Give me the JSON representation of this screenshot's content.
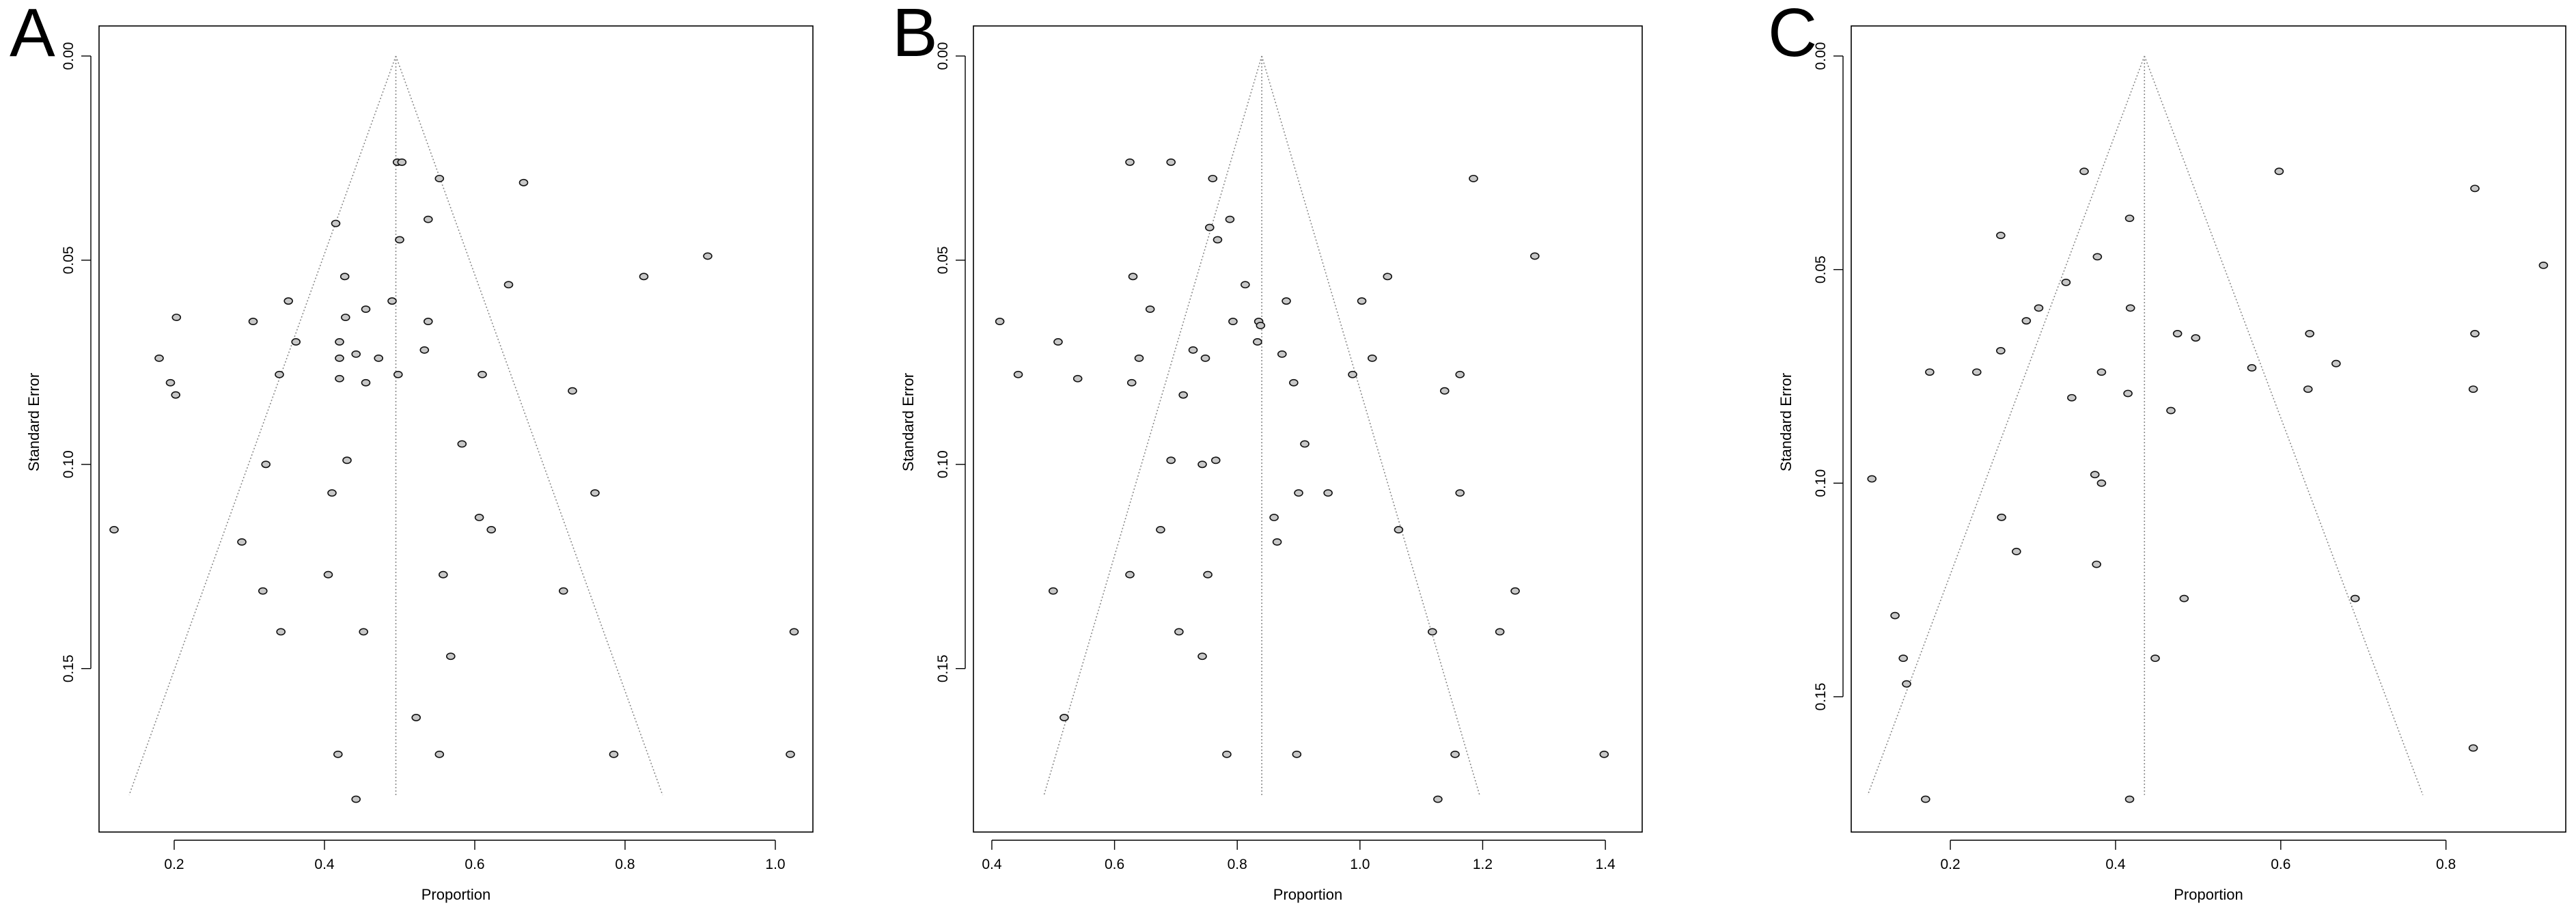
{
  "chart_data": [
    {
      "type": "scatter",
      "panel": "A",
      "xlabel": "Proportion",
      "ylabel": "Standard Error",
      "xlim": [
        0.1,
        1.05
      ],
      "ylim": [
        0.0,
        0.182
      ],
      "y_reversed": true,
      "x_ticks": [
        "0.2",
        "0.4",
        "0.6",
        "0.8",
        "1.0"
      ],
      "x_tick_values": [
        0.2,
        0.4,
        0.6,
        0.8,
        1.0
      ],
      "y_ticks": [
        "0.00",
        "0.05",
        "0.10",
        "0.15"
      ],
      "y_tick_values": [
        0.0,
        0.05,
        0.1,
        0.15
      ],
      "pooled_estimate": 0.495,
      "funnel_base_se": 0.181,
      "funnel_base_x": [
        0.14,
        0.85
      ],
      "points": [
        [
          0.497,
          0.026
        ],
        [
          0.503,
          0.026
        ],
        [
          0.553,
          0.03
        ],
        [
          0.665,
          0.031
        ],
        [
          0.415,
          0.041
        ],
        [
          0.538,
          0.04
        ],
        [
          0.5,
          0.045
        ],
        [
          0.91,
          0.049
        ],
        [
          0.427,
          0.054
        ],
        [
          0.825,
          0.054
        ],
        [
          0.645,
          0.056
        ],
        [
          0.352,
          0.06
        ],
        [
          0.49,
          0.06
        ],
        [
          0.203,
          0.064
        ],
        [
          0.305,
          0.065
        ],
        [
          0.428,
          0.064
        ],
        [
          0.455,
          0.062
        ],
        [
          0.538,
          0.065
        ],
        [
          0.362,
          0.07
        ],
        [
          0.42,
          0.07
        ],
        [
          0.18,
          0.074
        ],
        [
          0.42,
          0.074
        ],
        [
          0.442,
          0.073
        ],
        [
          0.472,
          0.074
        ],
        [
          0.533,
          0.072
        ],
        [
          0.34,
          0.078
        ],
        [
          0.42,
          0.079
        ],
        [
          0.455,
          0.08
        ],
        [
          0.498,
          0.078
        ],
        [
          0.61,
          0.078
        ],
        [
          0.195,
          0.08
        ],
        [
          0.202,
          0.083
        ],
        [
          0.73,
          0.082
        ],
        [
          0.583,
          0.095
        ],
        [
          0.322,
          0.1
        ],
        [
          0.43,
          0.099
        ],
        [
          0.41,
          0.107
        ],
        [
          0.76,
          0.107
        ],
        [
          0.606,
          0.113
        ],
        [
          0.622,
          0.116
        ],
        [
          0.12,
          0.116
        ],
        [
          0.29,
          0.119
        ],
        [
          0.405,
          0.127
        ],
        [
          0.558,
          0.127
        ],
        [
          0.318,
          0.131
        ],
        [
          0.718,
          0.131
        ],
        [
          0.342,
          0.141
        ],
        [
          0.452,
          0.141
        ],
        [
          1.025,
          0.141
        ],
        [
          0.568,
          0.147
        ],
        [
          0.522,
          0.162
        ],
        [
          0.418,
          0.171
        ],
        [
          0.553,
          0.171
        ],
        [
          0.785,
          0.171
        ],
        [
          1.02,
          0.171
        ],
        [
          0.442,
          0.182
        ]
      ]
    },
    {
      "type": "scatter",
      "panel": "B",
      "xlabel": "Proportion",
      "ylabel": "Standard Error",
      "xlim": [
        0.37,
        1.46
      ],
      "ylim": [
        0.0,
        0.182
      ],
      "y_reversed": true,
      "x_ticks": [
        "0.4",
        "0.6",
        "0.8",
        "1.0",
        "1.2",
        "1.4"
      ],
      "x_tick_values": [
        0.4,
        0.6,
        0.8,
        1.0,
        1.2,
        1.4
      ],
      "y_ticks": [
        "0.00",
        "0.05",
        "0.10",
        "0.15"
      ],
      "y_tick_values": [
        0.0,
        0.05,
        0.1,
        0.15
      ],
      "pooled_estimate": 0.84,
      "funnel_base_se": 0.181,
      "funnel_base_x": [
        0.485,
        1.195
      ],
      "points": [
        [
          0.625,
          0.026
        ],
        [
          0.692,
          0.026
        ],
        [
          0.76,
          0.03
        ],
        [
          1.185,
          0.03
        ],
        [
          0.788,
          0.04
        ],
        [
          0.755,
          0.042
        ],
        [
          0.768,
          0.045
        ],
        [
          1.285,
          0.049
        ],
        [
          0.63,
          0.054
        ],
        [
          1.045,
          0.054
        ],
        [
          0.813,
          0.056
        ],
        [
          0.88,
          0.06
        ],
        [
          1.003,
          0.06
        ],
        [
          0.658,
          0.062
        ],
        [
          0.413,
          0.065
        ],
        [
          0.793,
          0.065
        ],
        [
          0.835,
          0.065
        ],
        [
          0.838,
          0.066
        ],
        [
          0.508,
          0.07
        ],
        [
          0.833,
          0.07
        ],
        [
          0.64,
          0.074
        ],
        [
          0.728,
          0.072
        ],
        [
          0.748,
          0.074
        ],
        [
          0.873,
          0.073
        ],
        [
          1.02,
          0.074
        ],
        [
          0.443,
          0.078
        ],
        [
          0.54,
          0.079
        ],
        [
          0.628,
          0.08
        ],
        [
          0.892,
          0.08
        ],
        [
          0.988,
          0.078
        ],
        [
          1.163,
          0.078
        ],
        [
          0.712,
          0.083
        ],
        [
          1.138,
          0.082
        ],
        [
          0.91,
          0.095
        ],
        [
          0.692,
          0.099
        ],
        [
          0.743,
          0.1
        ],
        [
          0.765,
          0.099
        ],
        [
          0.9,
          0.107
        ],
        [
          0.948,
          0.107
        ],
        [
          1.163,
          0.107
        ],
        [
          0.86,
          0.113
        ],
        [
          1.063,
          0.116
        ],
        [
          0.675,
          0.116
        ],
        [
          0.865,
          0.119
        ],
        [
          0.625,
          0.127
        ],
        [
          0.752,
          0.127
        ],
        [
          0.5,
          0.131
        ],
        [
          1.253,
          0.131
        ],
        [
          0.705,
          0.141
        ],
        [
          1.118,
          0.141
        ],
        [
          1.228,
          0.141
        ],
        [
          0.743,
          0.147
        ],
        [
          0.518,
          0.162
        ],
        [
          0.783,
          0.171
        ],
        [
          0.897,
          0.171
        ],
        [
          1.155,
          0.171
        ],
        [
          1.398,
          0.171
        ],
        [
          1.127,
          0.182
        ]
      ]
    },
    {
      "type": "scatter",
      "panel": "C",
      "xlabel": "Proportion",
      "ylabel": "Standard Error",
      "xlim": [
        0.08,
        0.945
      ],
      "ylim": [
        0.0,
        0.174
      ],
      "y_reversed": true,
      "x_ticks": [
        "0.2",
        "0.4",
        "0.6",
        "0.8"
      ],
      "x_tick_values": [
        0.2,
        0.4,
        0.6,
        0.8
      ],
      "y_ticks": [
        "0.00",
        "0.05",
        "0.10",
        "0.15"
      ],
      "y_tick_values": [
        0.0,
        0.05,
        0.1,
        0.15
      ],
      "pooled_estimate": 0.435,
      "funnel_base_se": 0.173,
      "funnel_base_x": [
        0.1,
        0.772
      ],
      "points": [
        [
          0.362,
          0.027
        ],
        [
          0.598,
          0.027
        ],
        [
          0.835,
          0.031
        ],
        [
          0.417,
          0.038
        ],
        [
          0.261,
          0.042
        ],
        [
          0.378,
          0.047
        ],
        [
          0.918,
          0.049
        ],
        [
          0.34,
          0.053
        ],
        [
          0.307,
          0.059
        ],
        [
          0.418,
          0.059
        ],
        [
          0.292,
          0.062
        ],
        [
          0.475,
          0.065
        ],
        [
          0.497,
          0.066
        ],
        [
          0.635,
          0.065
        ],
        [
          0.835,
          0.065
        ],
        [
          0.261,
          0.069
        ],
        [
          0.175,
          0.074
        ],
        [
          0.232,
          0.074
        ],
        [
          0.383,
          0.074
        ],
        [
          0.565,
          0.073
        ],
        [
          0.667,
          0.072
        ],
        [
          0.347,
          0.08
        ],
        [
          0.415,
          0.079
        ],
        [
          0.633,
          0.078
        ],
        [
          0.833,
          0.078
        ],
        [
          0.467,
          0.083
        ],
        [
          0.375,
          0.098
        ],
        [
          0.383,
          0.1
        ],
        [
          0.105,
          0.099
        ],
        [
          0.262,
          0.108
        ],
        [
          0.28,
          0.116
        ],
        [
          0.377,
          0.119
        ],
        [
          0.483,
          0.127
        ],
        [
          0.69,
          0.127
        ],
        [
          0.133,
          0.131
        ],
        [
          0.143,
          0.141
        ],
        [
          0.448,
          0.141
        ],
        [
          0.147,
          0.147
        ],
        [
          0.833,
          0.162
        ],
        [
          0.17,
          0.174
        ],
        [
          0.417,
          0.174
        ]
      ]
    }
  ],
  "panels": [
    {
      "letter": "A",
      "xlabel": "Proportion",
      "ylabel": "Standard Error"
    },
    {
      "letter": "B",
      "xlabel": "Proportion",
      "ylabel": "Standard Error"
    },
    {
      "letter": "C",
      "xlabel": "Proportion",
      "ylabel": "Standard Error"
    }
  ],
  "colors": {
    "frame": "#000000",
    "funnel_line": "#8a8a8a",
    "point_fill": "#c8c8c8",
    "point_stroke": "#111111"
  }
}
